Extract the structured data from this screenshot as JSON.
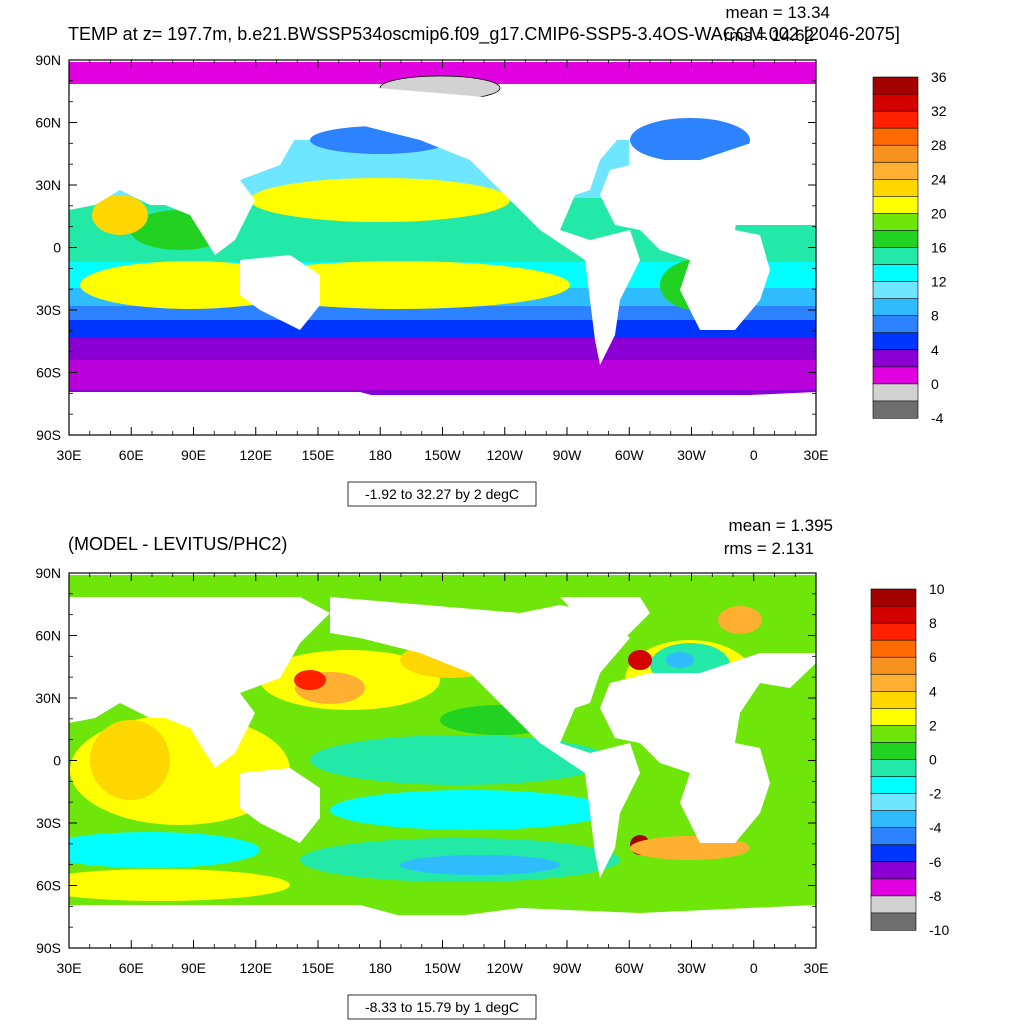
{
  "panels": [
    {
      "title": "TEMP at z= 197.7m, b.e21.BWSSP534oscmip6.f09_g17.CMIP6-SSP5-3.4OS-WACCM.002 [2046-2075]",
      "stats": {
        "mean": "mean = 13.34",
        "rms": "rms = 14.62"
      },
      "contour_info": "-1.92 to 32.27 by 2 degC"
    },
    {
      "title": "(MODEL - LEVITUS/PHC2)",
      "stats": {
        "mean": "mean = 1.395",
        "rms": "rms = 2.131"
      },
      "contour_info": "-8.33 to 15.79 by 1 degC"
    }
  ],
  "chart_data": [
    {
      "type": "heatmap",
      "title": "TEMP at z= 197.7m, b.e21.BWSSP534oscmip6.f09_g17.CMIP6-SSP5-3.4OS-WACCM.002 [2046-2075]",
      "x_ticks": [
        "30E",
        "60E",
        "90E",
        "120E",
        "150E",
        "180",
        "150W",
        "120W",
        "90W",
        "60W",
        "30W",
        "0",
        "30E"
      ],
      "y_ticks": [
        "90N",
        "60N",
        "30N",
        "0",
        "30S",
        "60S",
        "90S"
      ],
      "xlim": [
        30,
        390
      ],
      "ylim": [
        -90,
        90
      ],
      "colorbar": {
        "labels": [
          "36",
          "32",
          "28",
          "24",
          "20",
          "16",
          "12",
          "8",
          "4",
          "0",
          "-4"
        ],
        "colors": [
          "#a50000",
          "#d40000",
          "#ff2000",
          "#ff6a00",
          "#f59220",
          "#ffb030",
          "#ffd700",
          "#ffff00",
          "#6ee60a",
          "#22d222",
          "#22e8a8",
          "#00ffff",
          "#6ee6ff",
          "#2fbcff",
          "#2d82ff",
          "#0034ff",
          "#8a00d4",
          "#e000e0",
          "#d2d2d2",
          "#6e6e6e"
        ]
      },
      "mean": 13.34,
      "rms": 14.62
    },
    {
      "type": "heatmap",
      "title": "(MODEL - LEVITUS/PHC2)",
      "x_ticks": [
        "30E",
        "60E",
        "90E",
        "120E",
        "150E",
        "180",
        "150W",
        "120W",
        "90W",
        "60W",
        "30W",
        "0",
        "30E"
      ],
      "y_ticks": [
        "90N",
        "60N",
        "30N",
        "0",
        "30S",
        "60S",
        "90S"
      ],
      "xlim": [
        30,
        390
      ],
      "ylim": [
        -90,
        90
      ],
      "colorbar": {
        "labels": [
          "10",
          "8",
          "6",
          "4",
          "2",
          "0",
          "-2",
          "-4",
          "-6",
          "-8",
          "-10"
        ],
        "colors": [
          "#a50000",
          "#d40000",
          "#ff2000",
          "#ff6a00",
          "#f59220",
          "#ffb030",
          "#ffd700",
          "#ffff00",
          "#6ee60a",
          "#22d222",
          "#22e8a8",
          "#00ffff",
          "#6ee6ff",
          "#2fbcff",
          "#2d82ff",
          "#0034ff",
          "#8a00d4",
          "#e000e0",
          "#d2d2d2",
          "#6e6e6e"
        ]
      },
      "mean": 1.395,
      "rms": 2.131
    }
  ]
}
